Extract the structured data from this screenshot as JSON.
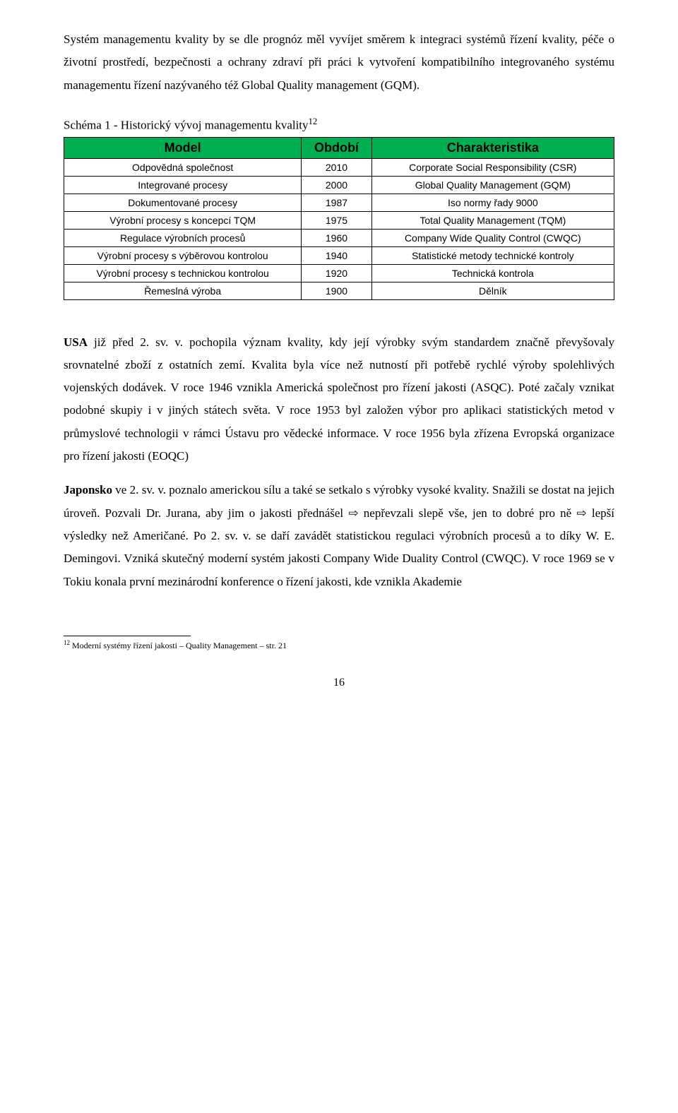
{
  "para1": "Systém managementu kvality by se dle prognóz měl vyvíjet směrem k integraci systémů řízení kvality, péče o životní prostředí, bezpečnosti a ochrany zdraví při práci k vytvoření kompatibilního integrovaného systému managementu řízení nazývaného též Global Quality management (GQM).",
  "schema_title_pre": "Schéma 1 - Historický vývoj managementu kvality",
  "schema_title_sup": "12",
  "table": {
    "headers": [
      "Model",
      "Období",
      "Charakteristika"
    ],
    "header_bg": "#00b050",
    "rows": [
      [
        "Odpovědná společnost",
        "2010",
        "Corporate Social Responsibility (CSR)"
      ],
      [
        "Integrované procesy",
        "2000",
        "Global Quality Management (GQM)"
      ],
      [
        "Dokumentované procesy",
        "1987",
        "Iso normy řady 9000"
      ],
      [
        "Výrobní procesy s koncepcí TQM",
        "1975",
        "Total Quality Management (TQM)"
      ],
      [
        "Regulace výrobních procesů",
        "1960",
        "Company Wide Quality Control (CWQC)"
      ],
      [
        "Výrobní procesy s výběrovou kontrolou",
        "1940",
        "Statistické metody technické kontroly"
      ],
      [
        "Výrobní procesy s technickou kontrolou",
        "1920",
        "Technická kontrola"
      ],
      [
        "Řemeslná výroba",
        "1900",
        "Dělník"
      ]
    ]
  },
  "para2_bold": "USA",
  "para2_rest": " již před 2. sv. v. pochopila význam kvality, kdy její výrobky svým standardem značně převyšovaly srovnatelné zboží z ostatních zemí. Kvalita byla více než nutností při potřebě rychlé výroby spolehlivých vojenských dodávek. V roce 1946 vznikla Americká společnost pro řízení jakosti (ASQC). Poté začaly vznikat podobné skupiy i v jiných státech světa. V roce 1953 byl založen výbor pro aplikaci statistických metod v průmyslové technologii v rámci Ústavu pro vědecké informace. V roce 1956 byla zřízena Evropská organizace pro řízení jakosti (EOQC)",
  "para3_bold": "Japonsko",
  "para3_rest": " ve 2. sv. v. poznalo americkou sílu a také se setkalo s výrobky vysoké kvality. Snažili se dostat na jejich úroveň. Pozvali Dr. Jurana, aby jim o jakosti přednášel ⇨ nepřevzali slepě vše, jen to dobré pro ně ⇨ lepší výsledky než Američané. Po 2. sv. v. se daří zavádět statistickou regulaci výrobních procesů a to díky W. E. Demingovi. Vzniká skutečný moderní systém jakosti Company Wide Duality Control (CWQC). V roce 1969 se v Tokiu konala první mezinárodní konference o řízení jakosti, kde vznikla Akademie",
  "footnote_sup": "12",
  "footnote_text": " Moderní systémy řízení jakosti – Quality Management – str. 21",
  "page_number": "16"
}
